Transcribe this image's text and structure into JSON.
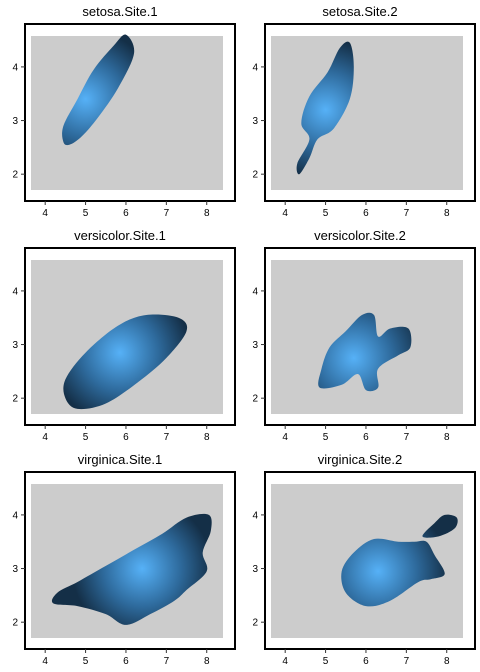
{
  "chart_data": [
    {
      "type": "density2d",
      "title": "setosa.Site.1",
      "xlim": [
        3.5,
        8.7
      ],
      "ylim": [
        1.5,
        4.8
      ],
      "xticks": [
        "4",
        "5",
        "6",
        "7",
        "8"
      ],
      "yticks": [
        "2",
        "3",
        "4"
      ],
      "blob": [
        [
          4.6,
          2.55
        ],
        [
          4.9,
          2.7
        ],
        [
          5.3,
          3.05
        ],
        [
          5.8,
          3.6
        ],
        [
          6.2,
          4.25
        ],
        [
          6.0,
          4.6
        ],
        [
          5.7,
          4.4
        ],
        [
          5.2,
          3.95
        ],
        [
          4.8,
          3.4
        ],
        [
          4.45,
          2.9
        ],
        [
          4.45,
          2.6
        ]
      ],
      "peak": [
        5.0,
        3.4
      ]
    },
    {
      "type": "density2d",
      "title": "setosa.Site.2",
      "xlim": [
        3.5,
        8.7
      ],
      "ylim": [
        1.5,
        4.8
      ],
      "xticks": [
        "4",
        "5",
        "6",
        "7",
        "8"
      ],
      "yticks": [
        "2",
        "3",
        "4"
      ],
      "blob": [
        [
          4.35,
          2.0
        ],
        [
          4.6,
          2.3
        ],
        [
          4.8,
          2.65
        ],
        [
          5.2,
          2.85
        ],
        [
          5.6,
          3.4
        ],
        [
          5.7,
          4.0
        ],
        [
          5.6,
          4.45
        ],
        [
          5.35,
          4.35
        ],
        [
          5.05,
          3.9
        ],
        [
          4.6,
          3.45
        ],
        [
          4.4,
          2.95
        ],
        [
          4.6,
          2.65
        ],
        [
          4.3,
          2.2
        ]
      ],
      "peak": [
        5.0,
        3.2
      ]
    },
    {
      "type": "density2d",
      "title": "versicolor.Site.1",
      "xlim": [
        3.5,
        8.7
      ],
      "ylim": [
        1.5,
        4.8
      ],
      "xticks": [
        "4",
        "5",
        "6",
        "7",
        "8"
      ],
      "yticks": [
        "2",
        "3",
        "4"
      ],
      "blob": [
        [
          4.8,
          1.8
        ],
        [
          5.5,
          1.9
        ],
        [
          6.3,
          2.3
        ],
        [
          7.0,
          2.75
        ],
        [
          7.5,
          3.25
        ],
        [
          7.3,
          3.5
        ],
        [
          6.5,
          3.55
        ],
        [
          5.8,
          3.35
        ],
        [
          5.0,
          2.85
        ],
        [
          4.5,
          2.35
        ],
        [
          4.5,
          2.0
        ]
      ],
      "peak": [
        5.85,
        2.85
      ]
    },
    {
      "type": "density2d",
      "title": "versicolor.Site.2",
      "xlim": [
        3.5,
        8.7
      ],
      "ylim": [
        1.5,
        4.8
      ],
      "xticks": [
        "4",
        "5",
        "6",
        "7",
        "8"
      ],
      "yticks": [
        "2",
        "3",
        "4"
      ],
      "blob": [
        [
          4.85,
          2.2
        ],
        [
          5.4,
          2.25
        ],
        [
          5.8,
          2.45
        ],
        [
          6.0,
          2.15
        ],
        [
          6.3,
          2.2
        ],
        [
          6.3,
          2.55
        ],
        [
          6.8,
          2.8
        ],
        [
          7.1,
          2.95
        ],
        [
          7.05,
          3.3
        ],
        [
          6.6,
          3.3
        ],
        [
          6.3,
          3.15
        ],
        [
          6.2,
          3.55
        ],
        [
          5.9,
          3.55
        ],
        [
          5.5,
          3.25
        ],
        [
          5.1,
          2.95
        ],
        [
          4.9,
          2.55
        ]
      ],
      "peak": [
        5.7,
        2.75
      ]
    },
    {
      "type": "density2d",
      "title": "virginica.Site.1",
      "xlim": [
        3.5,
        8.7
      ],
      "ylim": [
        1.5,
        4.8
      ],
      "xticks": [
        "4",
        "5",
        "6",
        "7",
        "8"
      ],
      "yticks": [
        "2",
        "3",
        "4"
      ],
      "blob": [
        [
          4.2,
          2.35
        ],
        [
          4.8,
          2.3
        ],
        [
          5.5,
          2.15
        ],
        [
          6.0,
          1.95
        ],
        [
          6.6,
          2.15
        ],
        [
          7.2,
          2.4
        ],
        [
          7.5,
          2.6
        ],
        [
          8.0,
          2.95
        ],
        [
          7.9,
          3.3
        ],
        [
          8.1,
          3.7
        ],
        [
          8.05,
          4.0
        ],
        [
          7.5,
          3.95
        ],
        [
          6.9,
          3.65
        ],
        [
          6.2,
          3.35
        ],
        [
          5.5,
          3.05
        ],
        [
          4.8,
          2.75
        ],
        [
          4.3,
          2.55
        ]
      ],
      "peak": [
        6.4,
        3.0
      ]
    },
    {
      "type": "density2d",
      "title": "virginica.Site.2",
      "xlim": [
        3.5,
        8.7
      ],
      "ylim": [
        1.5,
        4.8
      ],
      "xticks": [
        "4",
        "5",
        "6",
        "7",
        "8"
      ],
      "yticks": [
        "2",
        "3",
        "4"
      ],
      "blob": [
        [
          5.5,
          2.55
        ],
        [
          6.0,
          2.3
        ],
        [
          6.6,
          2.4
        ],
        [
          7.3,
          2.75
        ],
        [
          7.6,
          2.8
        ],
        [
          7.95,
          2.9
        ],
        [
          7.7,
          3.25
        ],
        [
          7.5,
          3.5
        ],
        [
          7.2,
          3.5
        ],
        [
          6.8,
          3.5
        ],
        [
          6.2,
          3.55
        ],
        [
          5.7,
          3.3
        ],
        [
          5.4,
          2.95
        ]
      ],
      "island": [
        [
          7.4,
          3.6
        ],
        [
          7.7,
          3.85
        ],
        [
          7.95,
          4.0
        ],
        [
          8.25,
          3.95
        ],
        [
          8.2,
          3.75
        ],
        [
          7.8,
          3.6
        ]
      ],
      "peak": [
        6.3,
        2.95
      ]
    }
  ]
}
